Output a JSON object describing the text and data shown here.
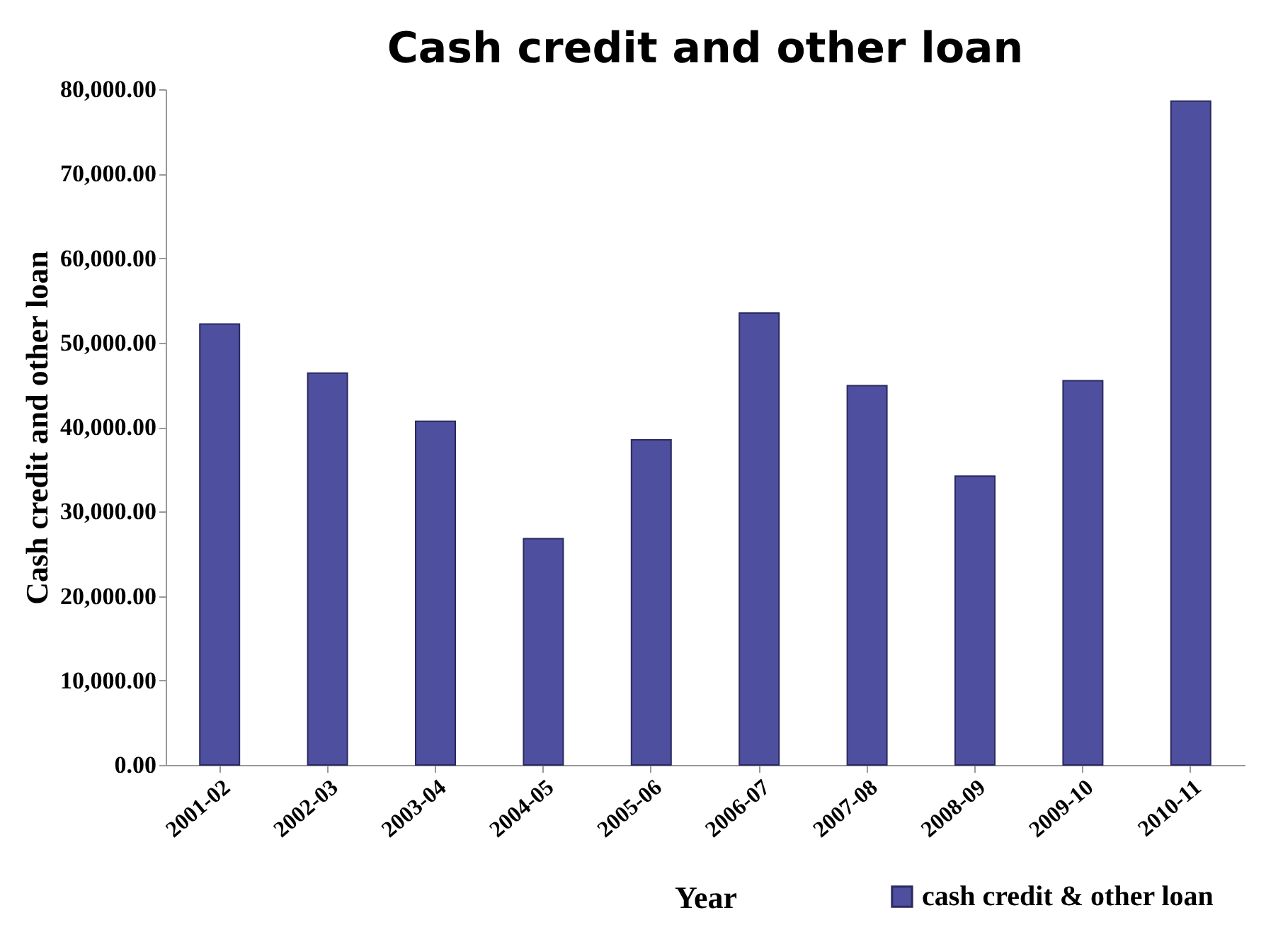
{
  "chart_data": {
    "type": "bar",
    "title": "Cash credit and other loan",
    "xlabel": "Year",
    "ylabel": "Cash credit and other loan",
    "categories": [
      "2001-02",
      "2002-03",
      "2003-04",
      "2004-05",
      "2005-06",
      "2006-07",
      "2007-08",
      "2008-09",
      "2009-10",
      "2010-11"
    ],
    "series": [
      {
        "name": "cash credit & other loan",
        "color": "#4f4f9f",
        "values": [
          52200,
          46400,
          40700,
          26800,
          38500,
          53500,
          44900,
          34200,
          45500,
          78600
        ]
      }
    ],
    "ylim": [
      0,
      80000
    ],
    "yticks": [
      {
        "value": 0,
        "label": "0.00"
      },
      {
        "value": 10000,
        "label": "10,000.00"
      },
      {
        "value": 20000,
        "label": "20,000.00"
      },
      {
        "value": 30000,
        "label": "30,000.00"
      },
      {
        "value": 40000,
        "label": "40,000.00"
      },
      {
        "value": 50000,
        "label": "50,000.00"
      },
      {
        "value": 60000,
        "label": "60,000.00"
      },
      {
        "value": 70000,
        "label": "70,000.00"
      },
      {
        "value": 80000,
        "label": "80,000.00"
      }
    ],
    "legend": "bottom right",
    "grid": false
  }
}
